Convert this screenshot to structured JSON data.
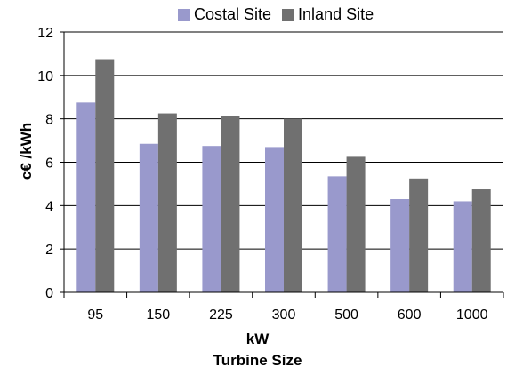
{
  "chart_data": {
    "type": "bar",
    "categories": [
      "95",
      "150",
      "225",
      "300",
      "500",
      "600",
      "1000"
    ],
    "series": [
      {
        "name": "Costal Site",
        "color": "#9999CC",
        "values": [
          8.75,
          6.85,
          6.75,
          6.7,
          5.35,
          4.3,
          4.2
        ]
      },
      {
        "name": "Inland Site",
        "color": "#707070",
        "values": [
          10.75,
          8.25,
          8.15,
          8.0,
          6.25,
          5.25,
          4.75
        ]
      }
    ],
    "ylim": [
      0,
      12
    ],
    "yticks": [
      "0",
      "2",
      "4",
      "6",
      "8",
      "10",
      "12"
    ],
    "ylabel": "c€ /kWh",
    "xlabel_line1": "kW",
    "xlabel_line2": "Turbine Size",
    "grid": true,
    "legend_position": "top"
  }
}
